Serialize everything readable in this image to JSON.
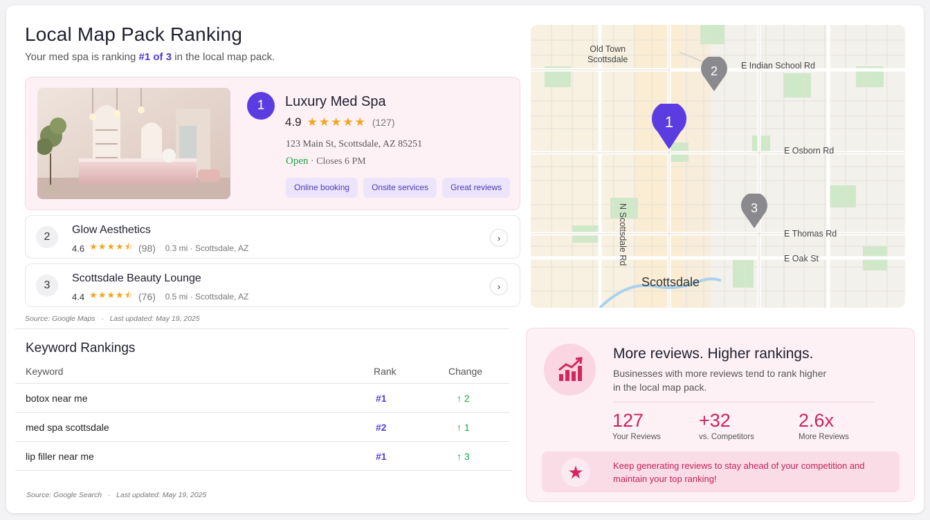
{
  "header": {
    "title": "Local Map Pack Ranking",
    "subtitle_prefix": "Your med spa is ranking ",
    "subtitle_rank": "#1 of 3",
    "subtitle_suffix": " in the local map pack."
  },
  "featured": {
    "rank": "1",
    "name": "Luxury Med Spa",
    "rating": "4.9",
    "stars": "★★★★★",
    "review_count": "(127)",
    "address": "123 Main St, Scottsdale, AZ 85251",
    "status": "Open",
    "hours": " · Closes 6 PM",
    "tags": [
      "Online booking",
      "Onsite services",
      "Great reviews"
    ]
  },
  "competitors": [
    {
      "rank": "2",
      "name": "Glow Aesthetics",
      "rating": "4.6",
      "stars": "★★★★⯪",
      "review_count": "(98)",
      "distance": "0.3 mi",
      "location": "Scottsdale, AZ"
    },
    {
      "rank": "3",
      "name": "Scottsdale Beauty Lounge",
      "rating": "4.4",
      "stars": "★★★★⯪",
      "review_count": "(76)",
      "distance": "0.5 mi",
      "location": "Scottsdale, AZ"
    }
  ],
  "map_source": {
    "source": "Source: Google Maps",
    "updated": "Last updated: May 19, 2025"
  },
  "keywords": {
    "title": "Keyword Rankings",
    "headers": {
      "keyword": "Keyword",
      "rank": "Rank",
      "change": "Change"
    },
    "rows": [
      {
        "keyword": "botox near me",
        "rank": "#1",
        "change": "↑ 2"
      },
      {
        "keyword": "med spa scottsdale",
        "rank": "#2",
        "change": "↑ 1"
      },
      {
        "keyword": "lip filler near me",
        "rank": "#1",
        "change": "↑ 3"
      }
    ],
    "source": "Source: Google Search",
    "updated": "Last updated: May 19, 2025"
  },
  "map": {
    "labels": {
      "old_town_1": "Old Town",
      "old_town_2": "Scottsdale",
      "indian_school": "E Indian School Rd",
      "osborn": "E Osborn Rd",
      "scottsdale_rd": "N Scottsdale Rd",
      "thomas": "E Thomas Rd",
      "oak": "E Oak St",
      "city": "Scottsdale"
    },
    "pins": [
      "1",
      "2",
      "3"
    ],
    "colors": {
      "primary_pin": "#5b3ce0",
      "secondary_pin": "#8a8a8e"
    }
  },
  "promo": {
    "title": "More reviews. Higher rankings.",
    "text": "Businesses with more reviews tend to rank higher in the local map pack.",
    "stats": [
      {
        "value": "127",
        "label": "Your Reviews"
      },
      {
        "value": "+32",
        "label": "vs. Competitors"
      },
      {
        "value": "2.6x",
        "label": "More Reviews"
      }
    ],
    "cta": "Keep generating reviews to stay ahead of your competition and maintain your top ranking!"
  },
  "colors": {
    "accent": "#5b3ce0",
    "positive": "#23a04b",
    "brand_pink": "#c8245f",
    "star": "#f2a51d"
  }
}
